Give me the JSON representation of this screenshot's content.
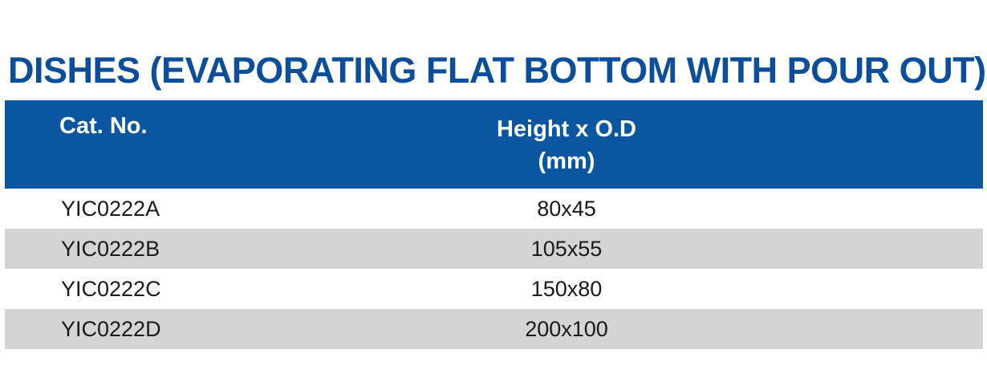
{
  "title": "DISHES (EVAPORATING FLAT BOTTOM WITH POUR OUT)",
  "colors": {
    "title": "#0b4f9c",
    "header_bg": "#0a56a0",
    "header_text": "#ffffff",
    "alt_row_bg": "#d3d4d6"
  },
  "table": {
    "headers": {
      "cat_no": "Cat. No.",
      "dimension_line1": "Height x O.D",
      "dimension_line2": "(mm)"
    },
    "rows": [
      {
        "cat_no": "YIC0222A",
        "dimension": "80x45"
      },
      {
        "cat_no": "YIC0222B",
        "dimension": "105x55"
      },
      {
        "cat_no": "YIC0222C",
        "dimension": "150x80"
      },
      {
        "cat_no": "YIC0222D",
        "dimension": "200x100"
      }
    ]
  }
}
